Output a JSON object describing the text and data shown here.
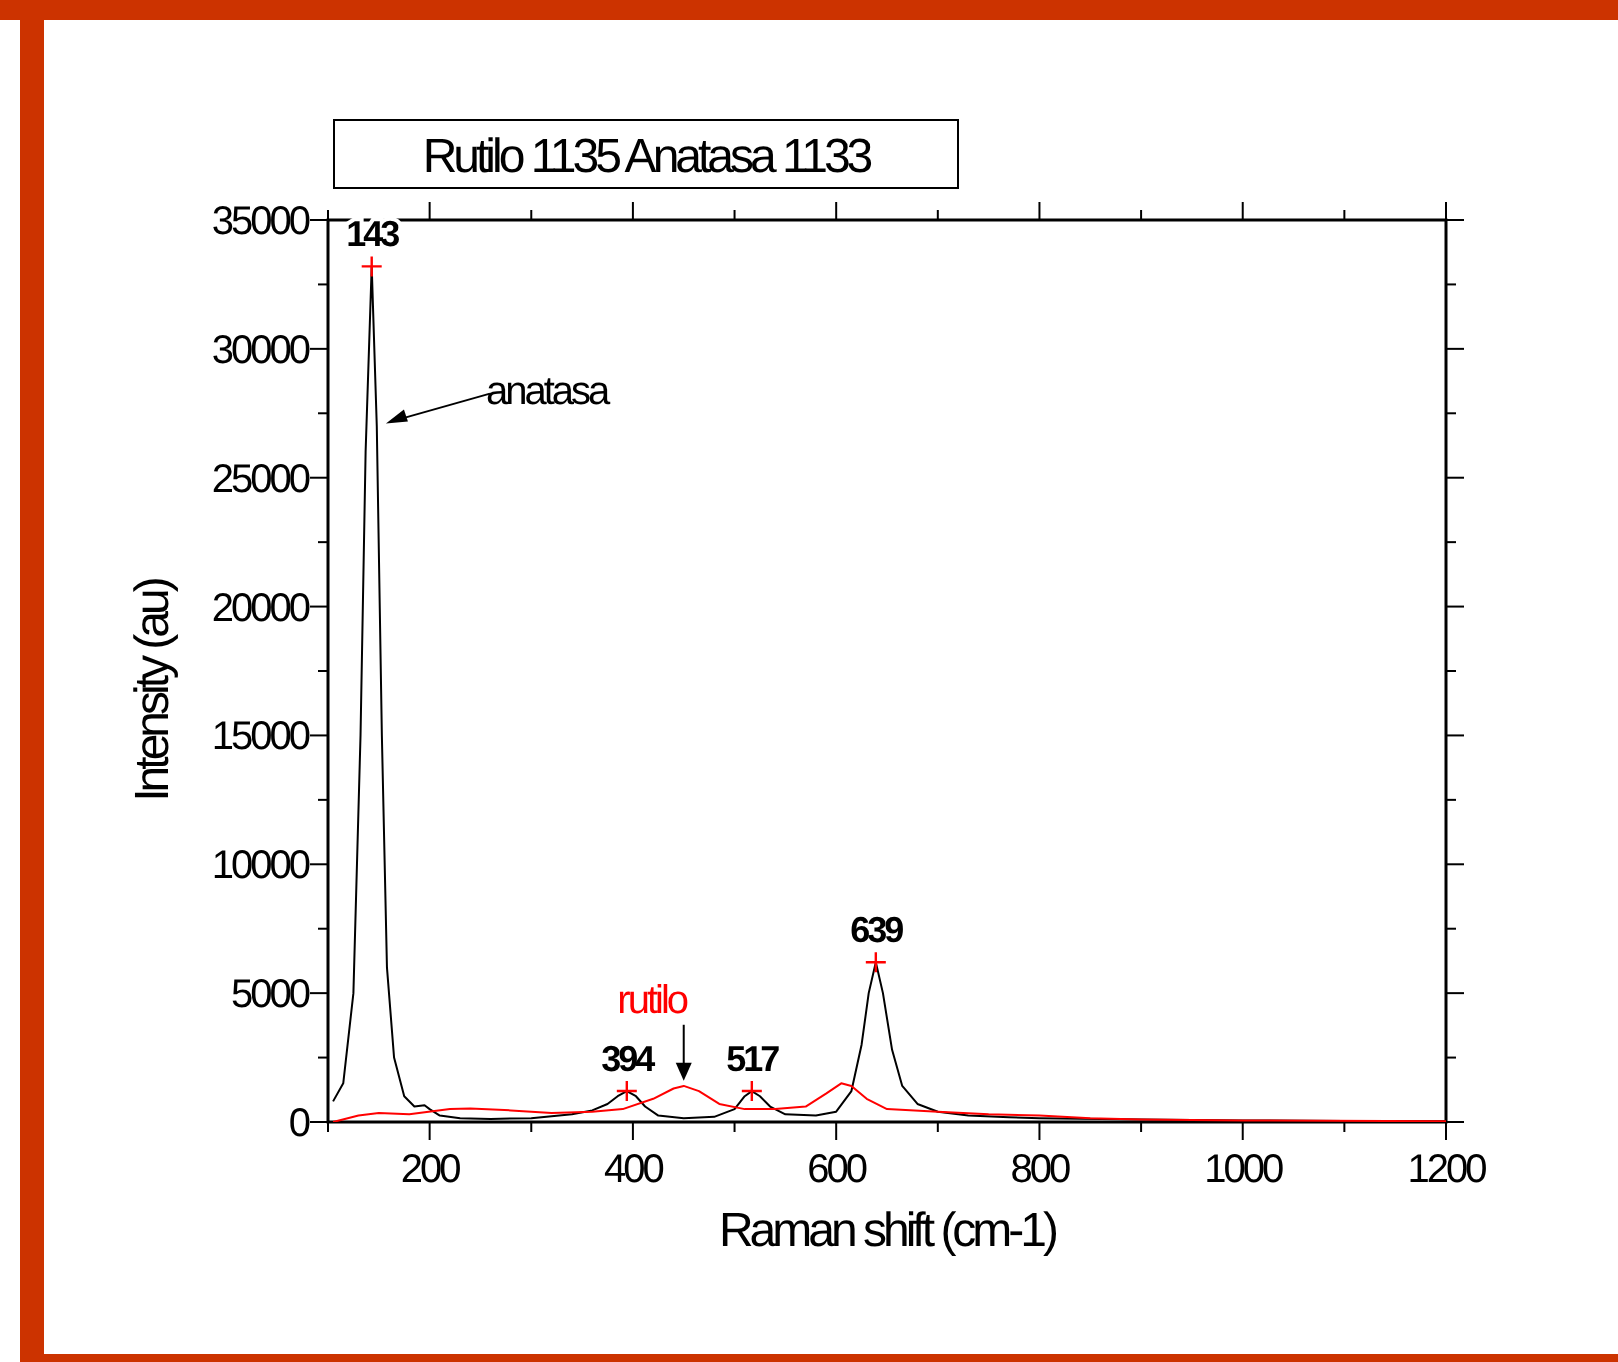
{
  "chart_data": {
    "type": "line",
    "title": "Rutilo 1135 Anatasa 1133",
    "xlabel": "Raman shift (cm-1)",
    "ylabel": "Intensity (au)",
    "xlim": [
      100,
      1200
    ],
    "ylim": [
      0,
      35000
    ],
    "xticks": [
      {
        "value": 100,
        "label": null
      },
      200,
      {
        "value": 300,
        "label": null
      },
      400,
      {
        "value": 500,
        "label": null
      },
      600,
      {
        "value": 700,
        "label": null
      },
      800,
      {
        "value": 900,
        "label": null
      },
      1000,
      {
        "value": 1100,
        "label": null
      },
      1200
    ],
    "yticks": [
      0,
      {
        "value": 2500,
        "label": null
      },
      5000,
      {
        "value": 7500,
        "label": null
      },
      10000,
      {
        "value": 12500,
        "label": null
      },
      15000,
      {
        "value": 17500,
        "label": null
      },
      20000,
      {
        "value": 22500,
        "label": null
      },
      25000,
      {
        "value": 27500,
        "label": null
      },
      30000,
      {
        "value": 32500,
        "label": null
      },
      35000
    ],
    "grid": false,
    "series": [
      {
        "color": "#000000",
        "x": [
          105,
          115,
          125,
          132,
          137,
          143,
          148,
          153,
          158,
          165,
          175,
          185,
          195,
          200,
          210,
          230,
          260,
          300,
          340,
          360,
          375,
          385,
          394,
          403,
          412,
          425,
          450,
          480,
          500,
          510,
          517,
          525,
          535,
          550,
          580,
          600,
          615,
          625,
          632,
          639,
          646,
          655,
          665,
          680,
          700,
          730,
          770,
          800,
          900,
          1000,
          1100,
          1200
        ],
        "values": [
          800,
          1500,
          5000,
          15000,
          26000,
          33200,
          27000,
          15000,
          6000,
          2500,
          1000,
          600,
          650,
          500,
          250,
          150,
          120,
          150,
          300,
          450,
          700,
          1000,
          1200,
          1000,
          600,
          250,
          150,
          200,
          500,
          1000,
          1200,
          1000,
          600,
          300,
          250,
          400,
          1200,
          3000,
          5000,
          6200,
          5000,
          2800,
          1400,
          700,
          400,
          250,
          180,
          150,
          100,
          60,
          40,
          30
        ]
      },
      {
        "color": "#ff0000",
        "x": [
          105,
          130,
          150,
          180,
          220,
          240,
          280,
          320,
          360,
          390,
          420,
          440,
          450,
          465,
          485,
          510,
          540,
          570,
          590,
          605,
          615,
          630,
          650,
          700,
          750,
          800,
          850,
          900,
          1000,
          1200
        ],
        "values": [
          0,
          250,
          350,
          300,
          500,
          520,
          450,
          350,
          400,
          500,
          900,
          1300,
          1400,
          1200,
          700,
          500,
          500,
          600,
          1100,
          1500,
          1400,
          900,
          500,
          400,
          300,
          250,
          150,
          100,
          60,
          30
        ]
      },
      {
        "type": "scatter",
        "marker": "cross",
        "color": "#ff0000",
        "x": [
          143,
          394,
          517,
          639
        ],
        "values": [
          33200,
          1200,
          1200,
          6200
        ]
      }
    ],
    "annotations": [
      {
        "text": "143",
        "x": 143,
        "y": 33200
      },
      {
        "text": "394",
        "x": 394,
        "y": 1200
      },
      {
        "text": "517",
        "x": 517,
        "y": 1200
      },
      {
        "text": "639",
        "x": 639,
        "y": 6200
      },
      {
        "text": "anatasa",
        "x": 157,
        "y": 27100
      },
      {
        "text": "rutilo",
        "x": 450,
        "y": 1600
      }
    ]
  }
}
